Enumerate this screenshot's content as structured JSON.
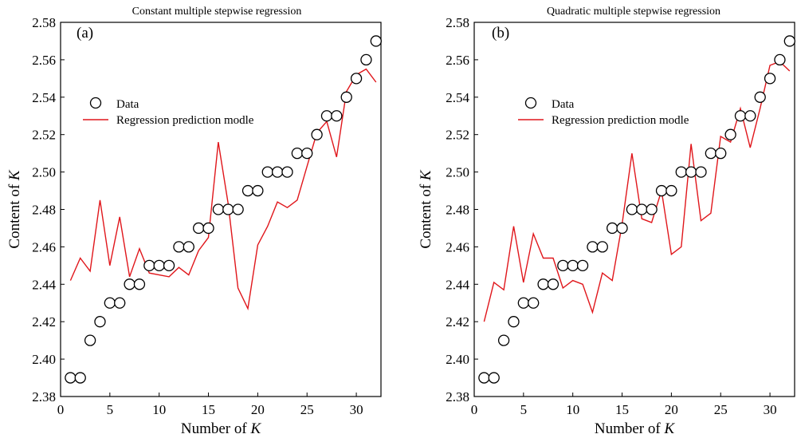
{
  "chart_data": [
    {
      "type": "scatter",
      "title": "Constant multiple stepwise regression",
      "panel_label": "(a)",
      "xlabel_prefix": "Number of ",
      "xlabel_var": "K",
      "ylabel_prefix": "Content of ",
      "ylabel_var": "K",
      "xlim": [
        0,
        32.5
      ],
      "ylim": [
        2.38,
        2.58
      ],
      "xticks": [
        0,
        5,
        10,
        15,
        20,
        25,
        30
      ],
      "yticks": [
        2.38,
        2.4,
        2.42,
        2.44,
        2.46,
        2.48,
        2.5,
        2.52,
        2.54,
        2.56,
        2.58
      ],
      "legend": {
        "position": "upper-left",
        "entries": [
          "Data",
          "Regression prediction modle"
        ]
      },
      "series": [
        {
          "name": "Data",
          "kind": "scatter",
          "marker": "open-circle",
          "color": "#000000",
          "x": [
            1,
            2,
            3,
            4,
            5,
            6,
            7,
            8,
            9,
            10,
            11,
            12,
            13,
            14,
            15,
            16,
            17,
            18,
            19,
            20,
            21,
            22,
            23,
            24,
            25,
            26,
            27,
            28,
            29,
            30,
            31,
            32
          ],
          "y": [
            2.39,
            2.39,
            2.41,
            2.42,
            2.43,
            2.43,
            2.44,
            2.44,
            2.45,
            2.45,
            2.45,
            2.46,
            2.46,
            2.47,
            2.47,
            2.48,
            2.48,
            2.48,
            2.49,
            2.49,
            2.5,
            2.5,
            2.5,
            2.51,
            2.51,
            2.52,
            2.53,
            2.53,
            2.54,
            2.55,
            2.56,
            2.57
          ]
        },
        {
          "name": "Regression prediction modle",
          "kind": "line",
          "color": "#e0161b",
          "x": [
            1,
            2,
            3,
            4,
            5,
            6,
            7,
            8,
            9,
            10,
            11,
            12,
            13,
            14,
            15,
            16,
            17,
            18,
            19,
            20,
            21,
            22,
            23,
            24,
            25,
            26,
            27,
            28,
            29,
            30,
            31,
            32
          ],
          "y": [
            2.442,
            2.454,
            2.447,
            2.485,
            2.45,
            2.476,
            2.444,
            2.459,
            2.446,
            2.445,
            2.444,
            2.449,
            2.445,
            2.458,
            2.465,
            2.516,
            2.483,
            2.438,
            2.427,
            2.461,
            2.471,
            2.484,
            2.481,
            2.485,
            2.503,
            2.521,
            2.527,
            2.508,
            2.543,
            2.552,
            2.555,
            2.548
          ]
        }
      ]
    },
    {
      "type": "scatter",
      "title": "Quadratic multiple stepwise regression",
      "panel_label": "(b)",
      "xlabel_prefix": "Number of ",
      "xlabel_var": "K",
      "ylabel_prefix": "Content of ",
      "ylabel_var": "K",
      "xlim": [
        0,
        32.5
      ],
      "ylim": [
        2.38,
        2.58
      ],
      "xticks": [
        0,
        5,
        10,
        15,
        20,
        25,
        30
      ],
      "yticks": [
        2.38,
        2.4,
        2.42,
        2.44,
        2.46,
        2.48,
        2.5,
        2.52,
        2.54,
        2.56,
        2.58
      ],
      "legend": {
        "position": "upper-left",
        "entries": [
          "Data",
          "Regression prediction modle"
        ]
      },
      "series": [
        {
          "name": "Data",
          "kind": "scatter",
          "marker": "open-circle",
          "color": "#000000",
          "x": [
            1,
            2,
            3,
            4,
            5,
            6,
            7,
            8,
            9,
            10,
            11,
            12,
            13,
            14,
            15,
            16,
            17,
            18,
            19,
            20,
            21,
            22,
            23,
            24,
            25,
            26,
            27,
            28,
            29,
            30,
            31,
            32
          ],
          "y": [
            2.39,
            2.39,
            2.41,
            2.42,
            2.43,
            2.43,
            2.44,
            2.44,
            2.45,
            2.45,
            2.45,
            2.46,
            2.46,
            2.47,
            2.47,
            2.48,
            2.48,
            2.48,
            2.49,
            2.49,
            2.5,
            2.5,
            2.5,
            2.51,
            2.51,
            2.52,
            2.53,
            2.53,
            2.54,
            2.55,
            2.56,
            2.57
          ]
        },
        {
          "name": "Regression prediction modle",
          "kind": "line",
          "color": "#e0161b",
          "x": [
            1,
            2,
            3,
            4,
            5,
            6,
            7,
            8,
            9,
            10,
            11,
            12,
            13,
            14,
            15,
            16,
            17,
            18,
            19,
            20,
            21,
            22,
            23,
            24,
            25,
            26,
            27,
            28,
            29,
            30,
            31,
            32
          ],
          "y": [
            2.42,
            2.441,
            2.437,
            2.471,
            2.441,
            2.467,
            2.454,
            2.454,
            2.438,
            2.442,
            2.44,
            2.425,
            2.446,
            2.442,
            2.472,
            2.51,
            2.475,
            2.473,
            2.49,
            2.456,
            2.46,
            2.515,
            2.474,
            2.478,
            2.519,
            2.516,
            2.534,
            2.513,
            2.534,
            2.557,
            2.559,
            2.554
          ]
        }
      ]
    }
  ]
}
